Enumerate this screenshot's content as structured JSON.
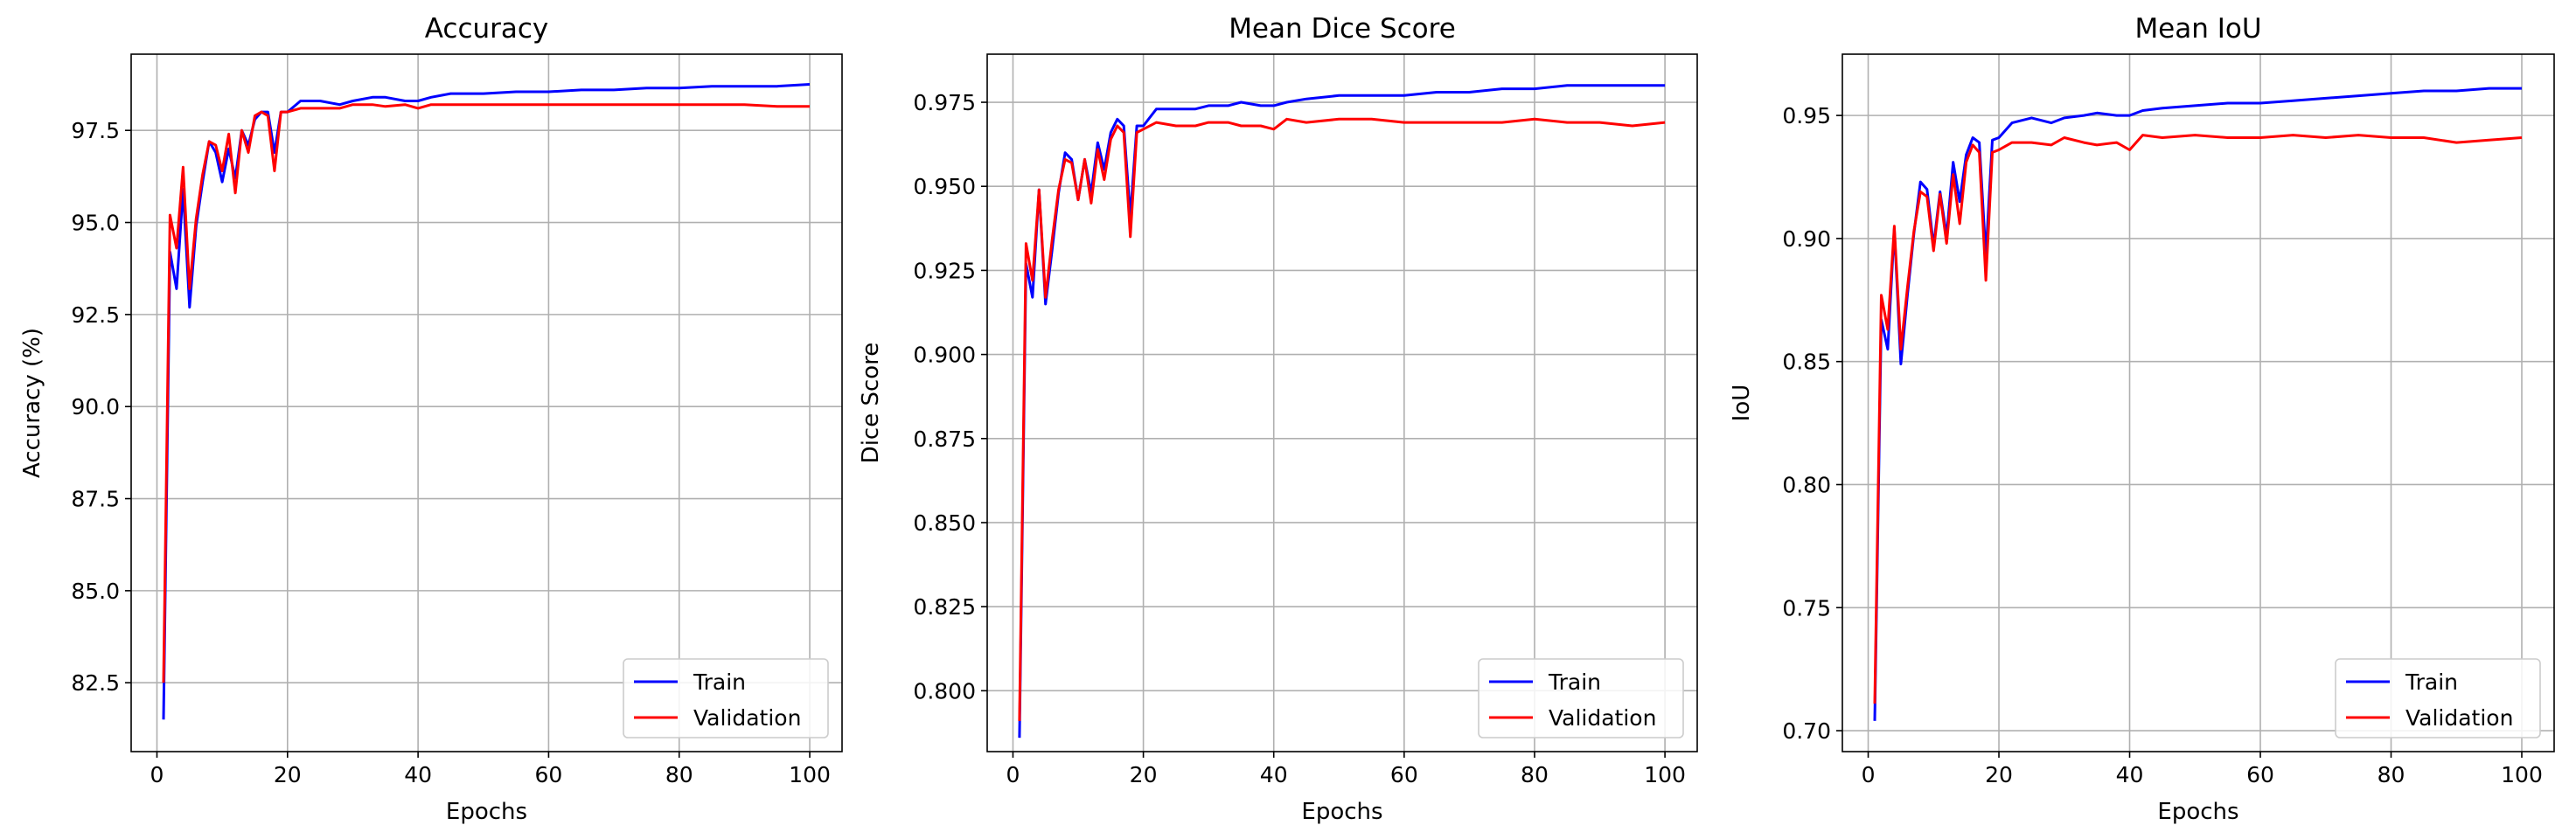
{
  "colors": {
    "train": "#0000ff",
    "validation": "#ff0000",
    "grid": "#b0b0b0",
    "axis": "#000000",
    "legend_border": "#cccccc"
  },
  "chart_data": [
    {
      "type": "line",
      "title": "Accuracy",
      "xlabel": "Epochs",
      "ylabel": "Accuracy (%)",
      "xlim": [
        -3.95,
        104.95
      ],
      "ylim": [
        80.63,
        99.57
      ],
      "xticks": [
        0,
        20,
        40,
        60,
        80,
        100
      ],
      "xtick_labels": [
        "0",
        "20",
        "40",
        "60",
        "80",
        "100"
      ],
      "yticks": [
        82.5,
        85.0,
        87.5,
        90.0,
        92.5,
        95.0,
        97.5
      ],
      "ytick_labels": [
        "82.5",
        "85.0",
        "87.5",
        "90.0",
        "92.5",
        "95.0",
        "97.5"
      ],
      "grid": true,
      "legend_position": "lower right",
      "series": [
        {
          "name": "Train",
          "color": "#0000ff",
          "points": [
            [
              1,
              81.5
            ],
            [
              2,
              94.2
            ],
            [
              3,
              93.2
            ],
            [
              4,
              95.9
            ],
            [
              5,
              92.7
            ],
            [
              6,
              94.9
            ],
            [
              7,
              96.1
            ],
            [
              8,
              97.2
            ],
            [
              9,
              96.9
            ],
            [
              10,
              96.1
            ],
            [
              11,
              97.0
            ],
            [
              12,
              96.2
            ],
            [
              13,
              97.5
            ],
            [
              14,
              97.1
            ],
            [
              15,
              97.8
            ],
            [
              16,
              98.0
            ],
            [
              17,
              98.0
            ],
            [
              18,
              96.9
            ],
            [
              19,
              98.0
            ],
            [
              20,
              98.0
            ],
            [
              22,
              98.3
            ],
            [
              25,
              98.3
            ],
            [
              28,
              98.2
            ],
            [
              30,
              98.3
            ],
            [
              33,
              98.4
            ],
            [
              35,
              98.4
            ],
            [
              38,
              98.3
            ],
            [
              40,
              98.3
            ],
            [
              42,
              98.4
            ],
            [
              45,
              98.5
            ],
            [
              50,
              98.5
            ],
            [
              55,
              98.55
            ],
            [
              60,
              98.55
            ],
            [
              65,
              98.6
            ],
            [
              70,
              98.6
            ],
            [
              75,
              98.65
            ],
            [
              80,
              98.65
            ],
            [
              85,
              98.7
            ],
            [
              90,
              98.7
            ],
            [
              95,
              98.7
            ],
            [
              100,
              98.75
            ]
          ]
        },
        {
          "name": "Validation",
          "color": "#ff0000",
          "points": [
            [
              1,
              82.5
            ],
            [
              2,
              95.2
            ],
            [
              3,
              94.3
            ],
            [
              4,
              96.5
            ],
            [
              5,
              93.2
            ],
            [
              6,
              95.1
            ],
            [
              7,
              96.3
            ],
            [
              8,
              97.2
            ],
            [
              9,
              97.1
            ],
            [
              10,
              96.4
            ],
            [
              11,
              97.4
            ],
            [
              12,
              95.8
            ],
            [
              13,
              97.5
            ],
            [
              14,
              96.9
            ],
            [
              15,
              97.9
            ],
            [
              16,
              98.0
            ],
            [
              17,
              97.9
            ],
            [
              18,
              96.4
            ],
            [
              19,
              98.0
            ],
            [
              20,
              98.0
            ],
            [
              22,
              98.1
            ],
            [
              25,
              98.1
            ],
            [
              28,
              98.1
            ],
            [
              30,
              98.2
            ],
            [
              33,
              98.2
            ],
            [
              35,
              98.15
            ],
            [
              38,
              98.2
            ],
            [
              40,
              98.1
            ],
            [
              42,
              98.2
            ],
            [
              45,
              98.2
            ],
            [
              50,
              98.2
            ],
            [
              55,
              98.2
            ],
            [
              60,
              98.2
            ],
            [
              65,
              98.2
            ],
            [
              70,
              98.2
            ],
            [
              75,
              98.2
            ],
            [
              80,
              98.2
            ],
            [
              85,
              98.2
            ],
            [
              90,
              98.2
            ],
            [
              95,
              98.15
            ],
            [
              100,
              98.15
            ]
          ]
        }
      ]
    },
    {
      "type": "line",
      "title": "Mean Dice Score",
      "xlabel": "Epochs",
      "ylabel": "Dice Score",
      "xlim": [
        -3.95,
        104.95
      ],
      "ylim": [
        0.7819,
        0.9893
      ],
      "xticks": [
        0,
        20,
        40,
        60,
        80,
        100
      ],
      "xtick_labels": [
        "0",
        "20",
        "40",
        "60",
        "80",
        "100"
      ],
      "yticks": [
        0.8,
        0.825,
        0.85,
        0.875,
        0.9,
        0.925,
        0.95,
        0.975
      ],
      "ytick_labels": [
        "0.800",
        "0.825",
        "0.850",
        "0.875",
        "0.900",
        "0.925",
        "0.950",
        "0.975"
      ],
      "grid": true,
      "legend_position": "lower right",
      "series": [
        {
          "name": "Train",
          "color": "#0000ff",
          "points": [
            [
              1,
              0.786
            ],
            [
              2,
              0.927
            ],
            [
              3,
              0.917
            ],
            [
              4,
              0.949
            ],
            [
              5,
              0.915
            ],
            [
              6,
              0.931
            ],
            [
              7,
              0.948
            ],
            [
              8,
              0.96
            ],
            [
              9,
              0.958
            ],
            [
              10,
              0.946
            ],
            [
              11,
              0.958
            ],
            [
              12,
              0.948
            ],
            [
              13,
              0.963
            ],
            [
              14,
              0.955
            ],
            [
              15,
              0.966
            ],
            [
              16,
              0.97
            ],
            [
              17,
              0.968
            ],
            [
              18,
              0.941
            ],
            [
              19,
              0.968
            ],
            [
              20,
              0.968
            ],
            [
              22,
              0.973
            ],
            [
              25,
              0.973
            ],
            [
              28,
              0.973
            ],
            [
              30,
              0.974
            ],
            [
              33,
              0.974
            ],
            [
              35,
              0.975
            ],
            [
              38,
              0.974
            ],
            [
              40,
              0.974
            ],
            [
              42,
              0.975
            ],
            [
              45,
              0.976
            ],
            [
              50,
              0.977
            ],
            [
              55,
              0.977
            ],
            [
              60,
              0.977
            ],
            [
              65,
              0.978
            ],
            [
              70,
              0.978
            ],
            [
              75,
              0.979
            ],
            [
              80,
              0.979
            ],
            [
              85,
              0.98
            ],
            [
              90,
              0.98
            ],
            [
              95,
              0.98
            ],
            [
              100,
              0.98
            ]
          ]
        },
        {
          "name": "Validation",
          "color": "#ff0000",
          "points": [
            [
              1,
              0.791
            ],
            [
              2,
              0.933
            ],
            [
              3,
              0.922
            ],
            [
              4,
              0.949
            ],
            [
              5,
              0.917
            ],
            [
              6,
              0.934
            ],
            [
              7,
              0.949
            ],
            [
              8,
              0.958
            ],
            [
              9,
              0.957
            ],
            [
              10,
              0.946
            ],
            [
              11,
              0.958
            ],
            [
              12,
              0.945
            ],
            [
              13,
              0.961
            ],
            [
              14,
              0.952
            ],
            [
              15,
              0.964
            ],
            [
              16,
              0.968
            ],
            [
              17,
              0.966
            ],
            [
              18,
              0.935
            ],
            [
              19,
              0.966
            ],
            [
              20,
              0.967
            ],
            [
              22,
              0.969
            ],
            [
              25,
              0.968
            ],
            [
              28,
              0.968
            ],
            [
              30,
              0.969
            ],
            [
              33,
              0.969
            ],
            [
              35,
              0.968
            ],
            [
              38,
              0.968
            ],
            [
              40,
              0.967
            ],
            [
              42,
              0.97
            ],
            [
              45,
              0.969
            ],
            [
              50,
              0.97
            ],
            [
              55,
              0.97
            ],
            [
              60,
              0.969
            ],
            [
              65,
              0.969
            ],
            [
              70,
              0.969
            ],
            [
              75,
              0.969
            ],
            [
              80,
              0.97
            ],
            [
              85,
              0.969
            ],
            [
              90,
              0.969
            ],
            [
              95,
              0.968
            ],
            [
              100,
              0.969
            ]
          ]
        }
      ]
    },
    {
      "type": "line",
      "title": "Mean IoU",
      "xlabel": "Epochs",
      "ylabel": "IoU",
      "xlim": [
        -3.95,
        104.95
      ],
      "ylim": [
        0.6915,
        0.9749
      ],
      "xticks": [
        0,
        20,
        40,
        60,
        80,
        100
      ],
      "xtick_labels": [
        "0",
        "20",
        "40",
        "60",
        "80",
        "100"
      ],
      "yticks": [
        0.7,
        0.75,
        0.8,
        0.85,
        0.9,
        0.95
      ],
      "ytick_labels": [
        "0.70",
        "0.75",
        "0.80",
        "0.85",
        "0.90",
        "0.95"
      ],
      "grid": true,
      "legend_position": "lower right",
      "series": [
        {
          "name": "Train",
          "color": "#0000ff",
          "points": [
            [
              1,
              0.704
            ],
            [
              2,
              0.867
            ],
            [
              3,
              0.855
            ],
            [
              4,
              0.904
            ],
            [
              5,
              0.849
            ],
            [
              6,
              0.877
            ],
            [
              7,
              0.902
            ],
            [
              8,
              0.923
            ],
            [
              9,
              0.92
            ],
            [
              10,
              0.897
            ],
            [
              11,
              0.919
            ],
            [
              12,
              0.901
            ],
            [
              13,
              0.931
            ],
            [
              14,
              0.915
            ],
            [
              15,
              0.934
            ],
            [
              16,
              0.941
            ],
            [
              17,
              0.939
            ],
            [
              18,
              0.893
            ],
            [
              19,
              0.94
            ],
            [
              20,
              0.941
            ],
            [
              22,
              0.947
            ],
            [
              25,
              0.949
            ],
            [
              28,
              0.947
            ],
            [
              30,
              0.949
            ],
            [
              33,
              0.95
            ],
            [
              35,
              0.951
            ],
            [
              38,
              0.95
            ],
            [
              40,
              0.95
            ],
            [
              42,
              0.952
            ],
            [
              45,
              0.953
            ],
            [
              50,
              0.954
            ],
            [
              55,
              0.955
            ],
            [
              60,
              0.955
            ],
            [
              65,
              0.956
            ],
            [
              70,
              0.957
            ],
            [
              75,
              0.958
            ],
            [
              80,
              0.959
            ],
            [
              85,
              0.96
            ],
            [
              90,
              0.96
            ],
            [
              95,
              0.961
            ],
            [
              100,
              0.961
            ]
          ]
        },
        {
          "name": "Validation",
          "color": "#ff0000",
          "points": [
            [
              1,
              0.711
            ],
            [
              2,
              0.877
            ],
            [
              3,
              0.863
            ],
            [
              4,
              0.905
            ],
            [
              5,
              0.855
            ],
            [
              6,
              0.88
            ],
            [
              7,
              0.903
            ],
            [
              8,
              0.919
            ],
            [
              9,
              0.917
            ],
            [
              10,
              0.895
            ],
            [
              11,
              0.918
            ],
            [
              12,
              0.898
            ],
            [
              13,
              0.926
            ],
            [
              14,
              0.906
            ],
            [
              15,
              0.931
            ],
            [
              16,
              0.938
            ],
            [
              17,
              0.935
            ],
            [
              18,
              0.883
            ],
            [
              19,
              0.935
            ],
            [
              20,
              0.936
            ],
            [
              22,
              0.939
            ],
            [
              25,
              0.939
            ],
            [
              28,
              0.938
            ],
            [
              30,
              0.941
            ],
            [
              33,
              0.939
            ],
            [
              35,
              0.938
            ],
            [
              38,
              0.939
            ],
            [
              40,
              0.936
            ],
            [
              42,
              0.942
            ],
            [
              45,
              0.941
            ],
            [
              50,
              0.942
            ],
            [
              55,
              0.941
            ],
            [
              60,
              0.941
            ],
            [
              65,
              0.942
            ],
            [
              70,
              0.941
            ],
            [
              75,
              0.942
            ],
            [
              80,
              0.941
            ],
            [
              85,
              0.941
            ],
            [
              90,
              0.939
            ],
            [
              95,
              0.94
            ],
            [
              100,
              0.941
            ]
          ]
        }
      ]
    }
  ]
}
